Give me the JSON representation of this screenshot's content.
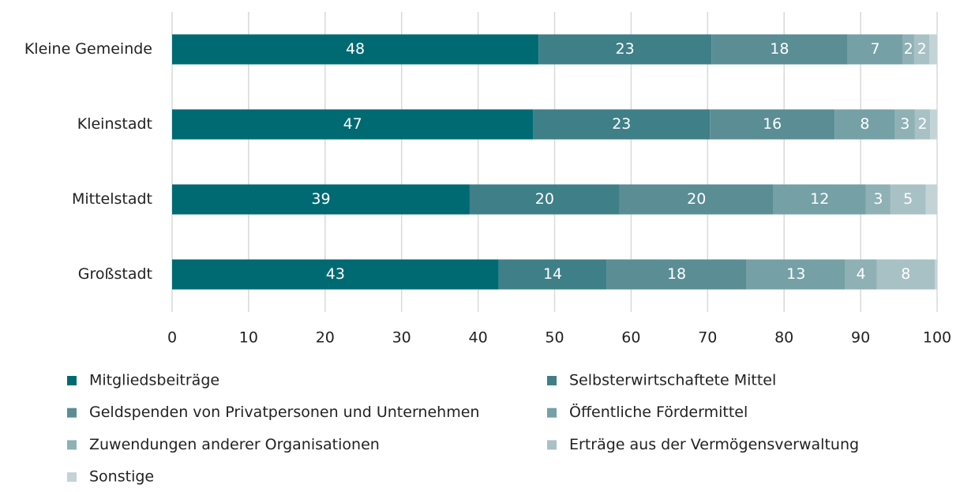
{
  "chart_data": {
    "type": "stacked_bar_horizontal",
    "categories": [
      "Kleine Gemeinde",
      "Kleinstadt",
      "Mittelstadt",
      "Großstadt"
    ],
    "series": [
      {
        "name": "Mitgliedsbeiträge",
        "color": "#006a73",
        "values": [
          47.9,
          47.2,
          38.9,
          42.7
        ],
        "value_labels": [
          "48",
          "47",
          "39",
          "43"
        ]
      },
      {
        "name": "Selbsterwirtschaftete Mittel",
        "color": "#3f7f87",
        "values": [
          22.6,
          23.1,
          19.6,
          14.1
        ],
        "value_labels": [
          "23",
          "23",
          "20",
          "14"
        ]
      },
      {
        "name": "Geldspenden von Privatpersonen und Unternehmen",
        "color": "#5a8d94",
        "values": [
          17.8,
          16.3,
          20.1,
          18.3
        ],
        "value_labels": [
          "18",
          "16",
          "20",
          "18"
        ]
      },
      {
        "name": "Öffentliche Fördermittel",
        "color": "#75a0a6",
        "values": [
          7.2,
          7.9,
          12.1,
          12.9
        ],
        "value_labels": [
          "7",
          "8",
          "12",
          "13"
        ]
      },
      {
        "name": "Zuwendungen anderer Organisationen",
        "color": "#8fb0b5",
        "values": [
          1.5,
          2.6,
          3.2,
          4.1
        ],
        "value_labels": [
          "2",
          "3",
          "3",
          "4"
        ]
      },
      {
        "name": "Erträge aus der Vermögensverwaltung",
        "color": "#a8c1c5",
        "values": [
          2.0,
          2.0,
          4.6,
          7.6
        ],
        "value_labels": [
          "2",
          "2",
          "5",
          "8"
        ]
      },
      {
        "name": "Sonstige",
        "color": "#c3d3d6",
        "values": [
          1.0,
          0.9,
          1.5,
          0.3
        ],
        "value_labels": [
          null,
          null,
          null,
          null
        ]
      }
    ],
    "xlim": [
      0,
      100
    ],
    "xticks": [
      0,
      10,
      20,
      30,
      40,
      50,
      60,
      70,
      80,
      90,
      100
    ],
    "grid": true
  }
}
